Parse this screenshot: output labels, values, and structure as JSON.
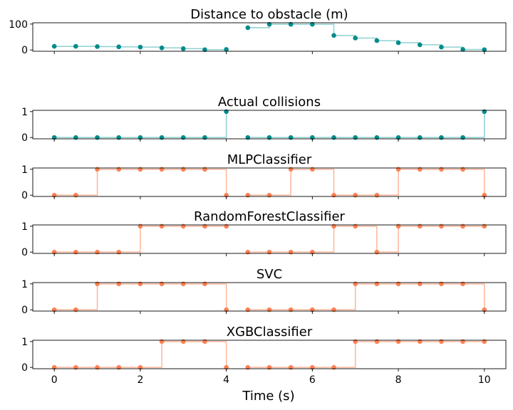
{
  "chart_data": {
    "type": "line",
    "xlabel": "Time (s)",
    "x_ticks": [
      0,
      2,
      4,
      6,
      8,
      10
    ],
    "x_range": [
      -0.5,
      10.5
    ],
    "colors": {
      "actual": "#008b8b",
      "actual_line": "#8fd1d1",
      "pred": "#ff7f50",
      "pred_line": "#ffb59a"
    },
    "panels": [
      {
        "title": "Distance to obstacle (m)",
        "style": "actual",
        "ylim": [
          -5,
          105
        ],
        "y_ticks": [
          0,
          100
        ],
        "segments": [
          {
            "x": [
              0,
              0.5,
              1,
              1.5,
              2,
              2.5,
              3,
              3.5,
              4
            ],
            "y": [
              14,
              14,
              13,
              12,
              11,
              8,
              5,
              1,
              2
            ]
          },
          {
            "x": [
              4.5,
              5,
              5.5,
              6,
              6.5,
              7,
              7.5,
              8,
              8.5,
              9,
              9.5,
              10
            ],
            "y": [
              86,
              99,
              99,
              99,
              56,
              46,
              36,
              28,
              20,
              11,
              2,
              1
            ]
          }
        ]
      },
      {
        "title": "Actual collisions",
        "style": "actual",
        "ylim": [
          -0.05,
          1.05
        ],
        "y_ticks": [
          0,
          1
        ],
        "segments": [
          {
            "x": [
              0,
              0.5,
              1,
              1.5,
              2,
              2.5,
              3,
              3.5,
              4
            ],
            "y": [
              0,
              0,
              0,
              0,
              0,
              0,
              0,
              0,
              1
            ]
          },
          {
            "x": [
              4.5,
              5,
              5.5,
              6,
              6.5,
              7,
              7.5,
              8,
              8.5,
              9,
              9.5,
              10
            ],
            "y": [
              0,
              0,
              0,
              0,
              0,
              0,
              0,
              0,
              0,
              0,
              0,
              1
            ]
          }
        ]
      },
      {
        "title": "MLPClassifier",
        "style": "pred",
        "ylim": [
          -0.05,
          1.05
        ],
        "y_ticks": [
          0,
          1
        ],
        "segments": [
          {
            "x": [
              0,
              0.5,
              1,
              1.5,
              2,
              2.5,
              3,
              3.5,
              4
            ],
            "y": [
              0,
              0,
              1,
              1,
              1,
              1,
              1,
              1,
              0
            ]
          },
          {
            "x": [
              4.5,
              5,
              5.5,
              6,
              6.5,
              7,
              7.5,
              8,
              8.5,
              9,
              9.5,
              10
            ],
            "y": [
              0,
              0,
              1,
              1,
              0,
              0,
              0,
              1,
              1,
              1,
              1,
              0
            ]
          }
        ]
      },
      {
        "title": "RandomForestClassifier",
        "style": "pred",
        "ylim": [
          -0.05,
          1.05
        ],
        "y_ticks": [
          0,
          1
        ],
        "segments": [
          {
            "x": [
              0,
              0.5,
              1,
              1.5,
              2,
              2.5,
              3,
              3.5,
              4
            ],
            "y": [
              0,
              0,
              0,
              0,
              1,
              1,
              1,
              1,
              1
            ]
          },
          {
            "x": [
              4.5,
              5,
              5.5,
              6,
              6.5,
              7,
              7.5,
              8,
              8.5,
              9,
              9.5,
              10
            ],
            "y": [
              0,
              0,
              0,
              0,
              1,
              1,
              0,
              1,
              1,
              1,
              1,
              1
            ]
          }
        ]
      },
      {
        "title": "SVC",
        "style": "pred",
        "ylim": [
          -0.05,
          1.05
        ],
        "y_ticks": [
          0,
          1
        ],
        "segments": [
          {
            "x": [
              0,
              0.5,
              1,
              1.5,
              2,
              2.5,
              3,
              3.5,
              4
            ],
            "y": [
              0,
              0,
              1,
              1,
              1,
              1,
              1,
              1,
              0
            ]
          },
          {
            "x": [
              4.5,
              5,
              5.5,
              6,
              6.5,
              7,
              7.5,
              8,
              8.5,
              9,
              9.5,
              10
            ],
            "y": [
              0,
              0,
              0,
              0,
              0,
              1,
              1,
              1,
              1,
              1,
              1,
              0
            ]
          }
        ]
      },
      {
        "title": "XGBClassifier",
        "style": "pred",
        "ylim": [
          -0.05,
          1.05
        ],
        "y_ticks": [
          0,
          1
        ],
        "segments": [
          {
            "x": [
              0,
              0.5,
              1,
              1.5,
              2,
              2.5,
              3,
              3.5,
              4
            ],
            "y": [
              0,
              0,
              0,
              0,
              0,
              1,
              1,
              1,
              0
            ]
          },
          {
            "x": [
              4.5,
              5,
              5.5,
              6,
              6.5,
              7,
              7.5,
              8,
              8.5,
              9,
              9.5,
              10
            ],
            "y": [
              0,
              0,
              0,
              0,
              0,
              1,
              1,
              1,
              1,
              1,
              1,
              1
            ]
          }
        ]
      }
    ]
  }
}
